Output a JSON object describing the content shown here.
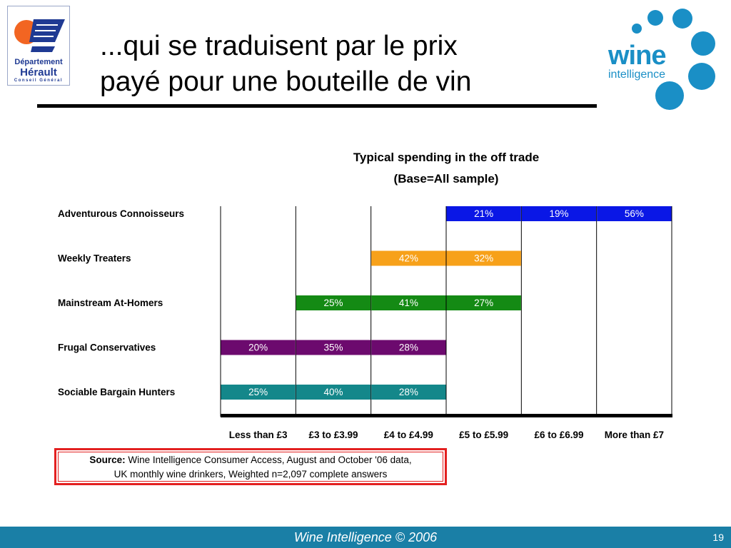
{
  "logo_left": {
    "line1": "Département",
    "line2": "Hérault",
    "line3": "Conseil Général"
  },
  "title": {
    "line1": "...qui se traduisent par le prix",
    "line2": "payé pour une bouteille de vin"
  },
  "logo_right": {
    "line1": "wine",
    "line2": "intelligence"
  },
  "chart_data": {
    "type": "table",
    "title": "Typical spending in the off trade",
    "subtitle": "(Base=All sample)",
    "columns": [
      "Less than £3",
      "£3 to £3.99",
      "£4 to £4.99",
      "£5 to £5.99",
      "£6 to £6.99",
      "More than £7"
    ],
    "rows": [
      {
        "label": "Adventurous Connoisseurs",
        "color": "#0a17e6",
        "cells": [
          null,
          null,
          null,
          "21%",
          "19%",
          "56%"
        ]
      },
      {
        "label": "Weekly Treaters",
        "color": "#f7a11a",
        "cells": [
          null,
          null,
          "42%",
          "32%",
          null,
          null
        ]
      },
      {
        "label": "Mainstream At-Homers",
        "color": "#148a14",
        "cells": [
          null,
          "25%",
          "41%",
          "27%",
          null,
          null
        ]
      },
      {
        "label": "Frugal Conservatives",
        "color": "#6c0a6e",
        "cells": [
          "20%",
          "35%",
          "28%",
          null,
          null,
          null
        ]
      },
      {
        "label": "Sociable Bargain Hunters",
        "color": "#14878a",
        "cells": [
          "25%",
          "40%",
          "28%",
          null,
          null,
          null
        ]
      }
    ]
  },
  "source": {
    "label": "Source:",
    "text1": " Wine Intelligence Consumer Access, August and October '06 data,",
    "text2": "UK monthly wine drinkers, Weighted n=2,097 complete answers"
  },
  "footer": {
    "text": "Wine Intelligence © 2006",
    "page": "19"
  }
}
